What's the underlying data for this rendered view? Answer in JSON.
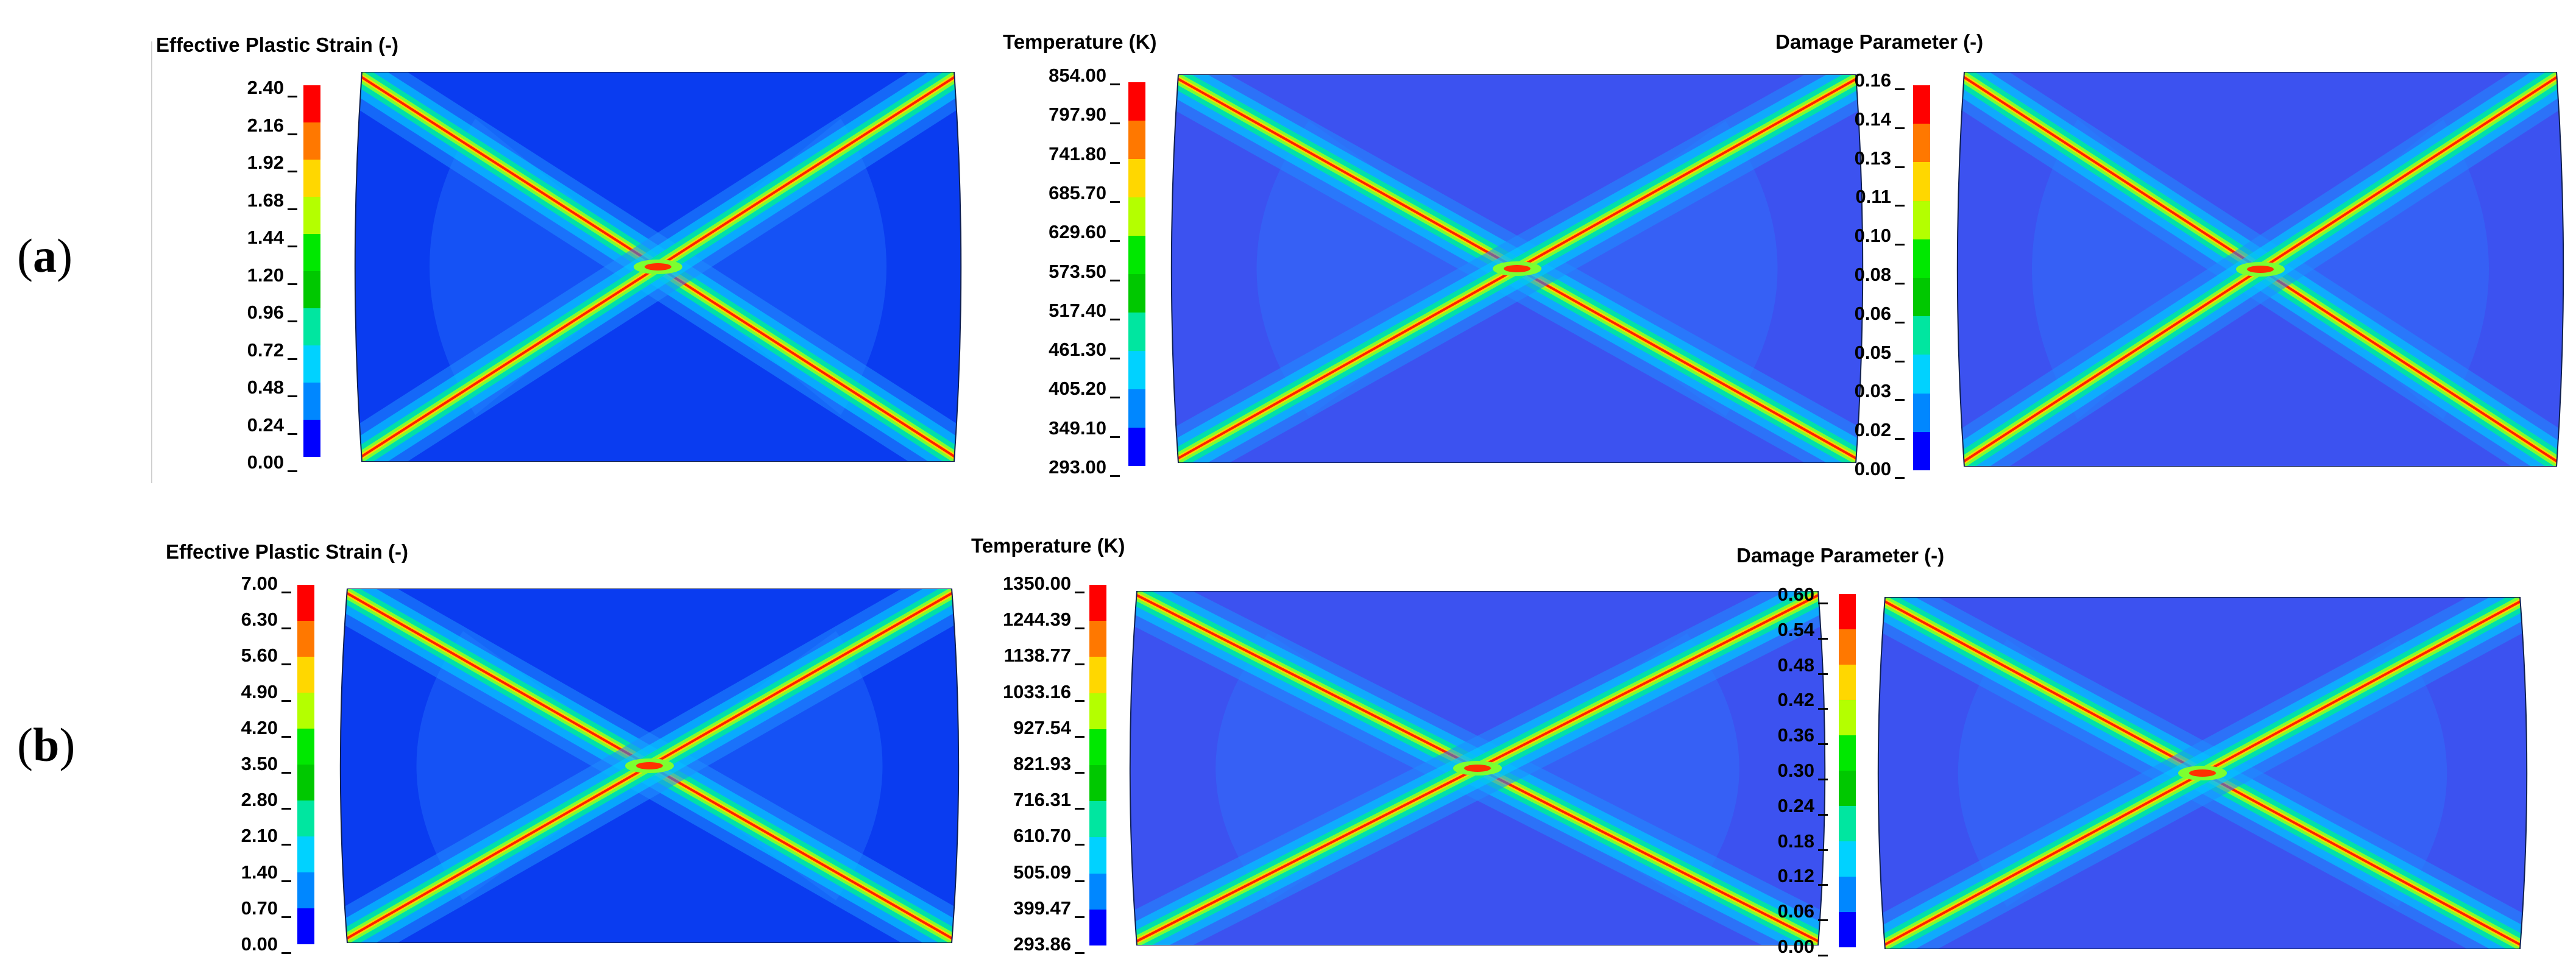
{
  "rows": [
    {
      "label_open": "(",
      "label_letter": "a",
      "label_close": ")",
      "panels": [
        {
          "title": "Effective Plastic Strain (-)",
          "ticks": [
            "2.40",
            "2.16",
            "1.92",
            "1.68",
            "1.44",
            "1.20",
            "0.96",
            "0.72",
            "0.48",
            "0.24",
            "0.00"
          ],
          "field": "strain"
        },
        {
          "title": "Temperature (K)",
          "ticks": [
            "854.00",
            "797.90",
            "741.80",
            "685.70",
            "629.60",
            "573.50",
            "517.40",
            "461.30",
            "405.20",
            "349.10",
            "293.00"
          ],
          "field": "temp"
        },
        {
          "title": "Damage Parameter (-)",
          "ticks": [
            "0.16",
            "0.14",
            "0.13",
            "0.11",
            "0.10",
            "0.08",
            "0.06",
            "0.05",
            "0.03",
            "0.02",
            "0.00"
          ],
          "field": "damage"
        }
      ]
    },
    {
      "label_open": "(",
      "label_letter": "b",
      "label_close": ")",
      "panels": [
        {
          "title": "Effective Plastic Strain (-)",
          "ticks": [
            "7.00",
            "6.30",
            "5.60",
            "4.90",
            "4.20",
            "3.50",
            "2.80",
            "2.10",
            "1.40",
            "0.70",
            "0.00"
          ],
          "field": "strain"
        },
        {
          "title": "Temperature (K)",
          "ticks": [
            "1350.00",
            "1244.39",
            "1138.77",
            "1033.16",
            "927.54",
            "821.93",
            "716.31",
            "610.70",
            "505.09",
            "399.47",
            "293.86"
          ],
          "field": "temp"
        },
        {
          "title": "Damage Parameter (-)",
          "ticks": [
            "0.60",
            "0.54",
            "0.48",
            "0.42",
            "0.36",
            "0.30",
            "0.24",
            "0.18",
            "0.12",
            "0.06",
            "0.00"
          ],
          "field": "damage"
        }
      ]
    }
  ],
  "colors": {
    "legend_scale": [
      "#ff0000",
      "#ff7800",
      "#ffd700",
      "#b4ff00",
      "#00e800",
      "#00c800",
      "#00e6a0",
      "#00d2ff",
      "#0087ff",
      "#0000ff"
    ],
    "background_strain": "#0a3cf0",
    "background_field": "#3c52f0"
  }
}
